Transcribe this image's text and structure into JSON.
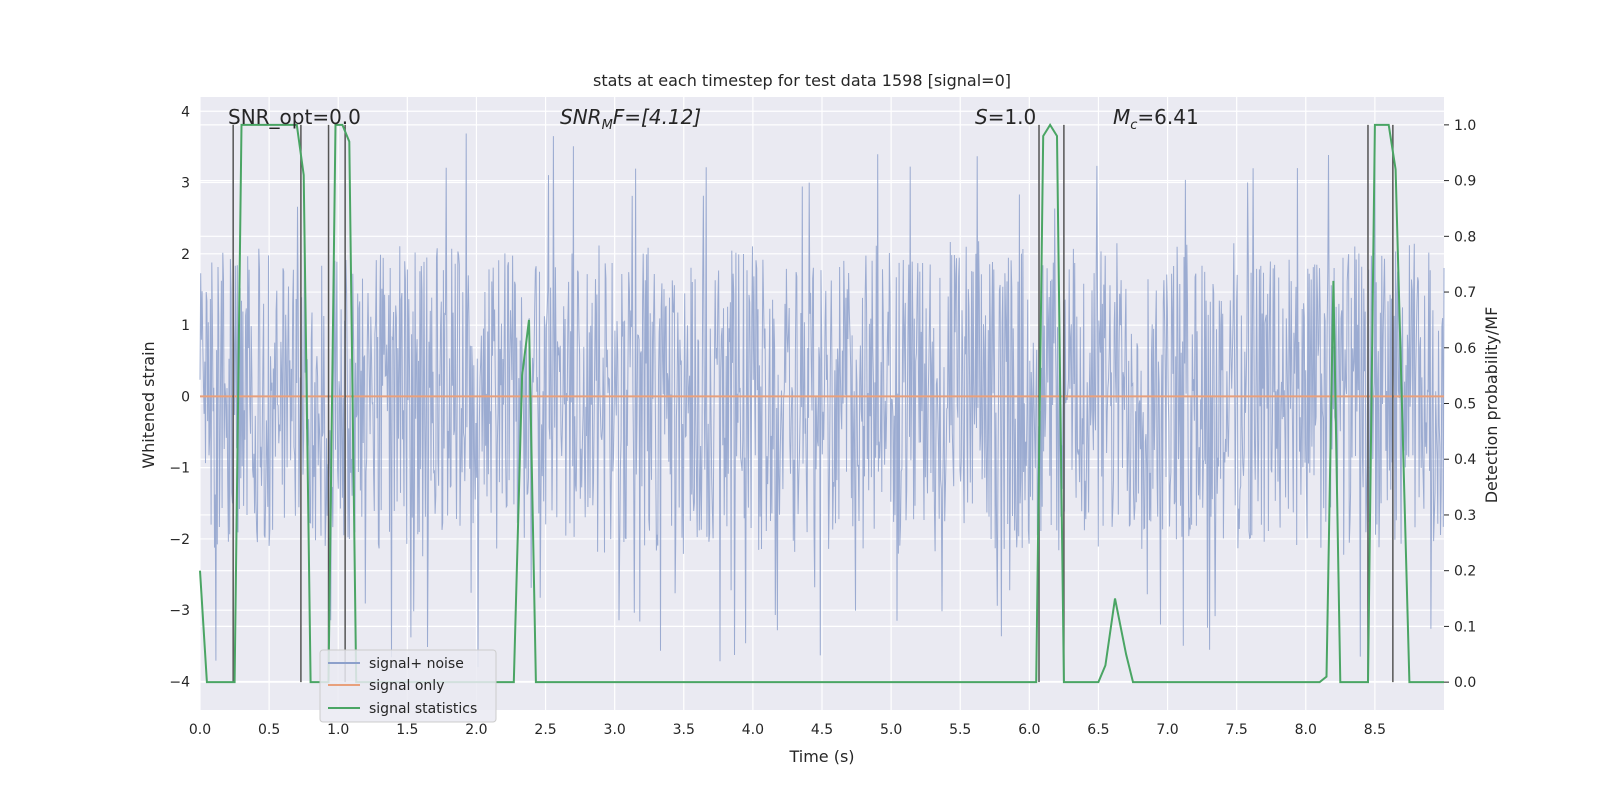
{
  "chart_data": {
    "type": "line",
    "title": "stats at each timestep for test data 1598 [signal=0]",
    "xlabel": "Time (s)",
    "ylabel_left": "Whitened strain",
    "ylabel_right": "Detection probability/MF",
    "xlim": [
      0.0,
      9.0
    ],
    "ylim_left": [
      -4.4,
      4.2
    ],
    "ylim_right": [
      -0.05,
      1.05
    ],
    "xticks": [
      "0.0",
      "0.5",
      "1.0",
      "1.5",
      "2.0",
      "2.5",
      "3.0",
      "3.5",
      "4.0",
      "4.5",
      "5.0",
      "5.5",
      "6.0",
      "6.5",
      "7.0",
      "7.5",
      "8.0",
      "8.5"
    ],
    "yticks_left": [
      "4",
      "3",
      "2",
      "1",
      "0",
      "−1",
      "−2",
      "−3",
      "−4"
    ],
    "yticks_right": [
      "1.0",
      "0.9",
      "0.8",
      "0.7",
      "0.6",
      "0.5",
      "0.4",
      "0.3",
      "0.2",
      "0.1",
      "0.0"
    ],
    "grid": true,
    "legend_position": "lower-left",
    "annotations": {
      "snr_opt": "SNR_opt=0.0",
      "snr_mf_main": "SNR",
      "snr_mf_sub": "M",
      "snr_mf_rest": "F=[4.12]",
      "s_italic": "S",
      "s_rest": "=1.0",
      "mc_main": "M",
      "mc_sub": "c",
      "mc_rest": "=6.41"
    },
    "series": [
      {
        "name": "signal+ noise",
        "color": "#8da0cb",
        "description": "whitened strain noise, approx. uniform amplitude between -2 and 2 with peaks near +/-3.8",
        "envelope_upper": 1.9,
        "envelope_lower": -1.9
      },
      {
        "name": "signal only",
        "color": "#e8a07c",
        "x": [
          0.0,
          9.0
        ],
        "y": [
          0.0,
          0.0
        ]
      },
      {
        "name": "signal statistics",
        "color": "#4aa564",
        "axis": "right",
        "x": [
          0.0,
          0.05,
          0.25,
          0.3,
          0.7,
          0.75,
          0.8,
          0.93,
          0.98,
          1.03,
          1.08,
          1.13,
          2.2,
          2.27,
          2.33,
          2.38,
          2.43,
          6.05,
          6.1,
          6.15,
          6.2,
          6.25,
          6.3,
          6.5,
          6.55,
          6.62,
          6.7,
          6.75,
          8.1,
          8.15,
          8.2,
          8.25,
          8.45,
          8.5,
          8.6,
          8.65,
          8.75,
          9.0
        ],
        "y": [
          0.2,
          0.0,
          0.0,
          1.0,
          1.0,
          0.91,
          0.0,
          0.0,
          1.0,
          1.0,
          0.97,
          0.0,
          0.0,
          0.0,
          0.55,
          0.65,
          0.0,
          0.0,
          0.98,
          1.0,
          0.98,
          0.0,
          0.0,
          0.0,
          0.03,
          0.15,
          0.05,
          0.0,
          0.0,
          0.01,
          0.72,
          0.0,
          0.0,
          1.0,
          1.0,
          0.92,
          0.0,
          0.0
        ]
      }
    ],
    "vertical_markers": {
      "color": "#555555",
      "x": [
        0.24,
        0.73,
        0.93,
        1.05,
        6.07,
        6.25,
        8.45,
        8.63
      ]
    },
    "legend": [
      "signal+ noise",
      "signal only",
      "signal statistics"
    ]
  }
}
